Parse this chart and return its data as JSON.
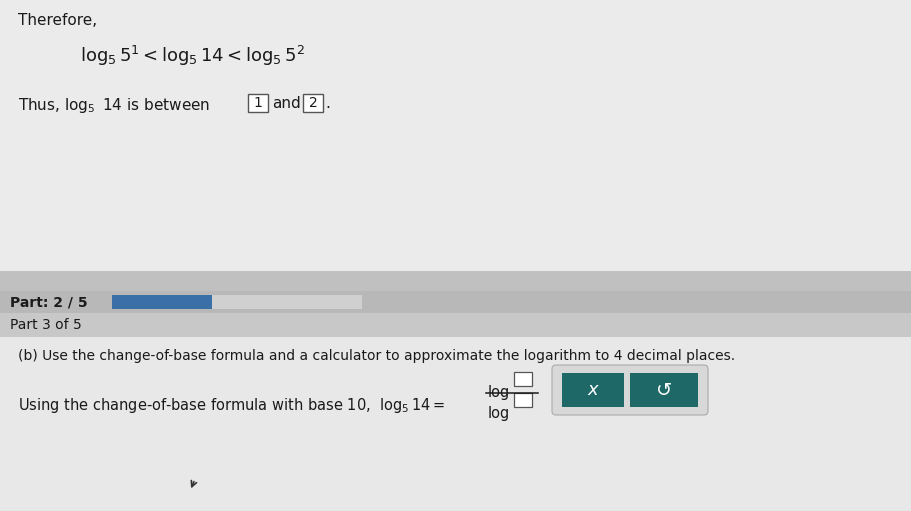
{
  "fig_w": 9.11,
  "fig_h": 5.11,
  "dpi": 100,
  "bg_overall": "#c0c0c0",
  "bg_top_section": "#dcdcdc",
  "bg_part_bar": "#b8b8b8",
  "bg_progress_track": "#d0d0d0",
  "progress_fill": "#3a6fa8",
  "bg_part3_bar": "#c8c8c8",
  "bg_bottom_section": "#e0e0e0",
  "bg_white_panel_top": "#ebebeb",
  "bg_white_panel_bot": "#e8e8e8",
  "btn_color": "#1e6868",
  "btn_border": "#c8c8c8",
  "btn_wrap_bg": "#d8d8d8",
  "text_dark": "#1a1a1a",
  "box_border": "#555555",
  "box_fill": "#ffffff",
  "frac_line_color": "#1a1a1a",
  "therefore_text": "Therefore,",
  "part_label": "Part: 2 / 5",
  "part3_label": "Part 3 of 5",
  "part_b_text": "(b) Use the change-of-base formula and a calculator to approximate the logarithm to 4 decimal places.",
  "change_base_prefix": "Using the change-of-base formula with base 10,",
  "log_sym": "log",
  "x_btn_sym": "x",
  "undo_btn_sym": "↺"
}
